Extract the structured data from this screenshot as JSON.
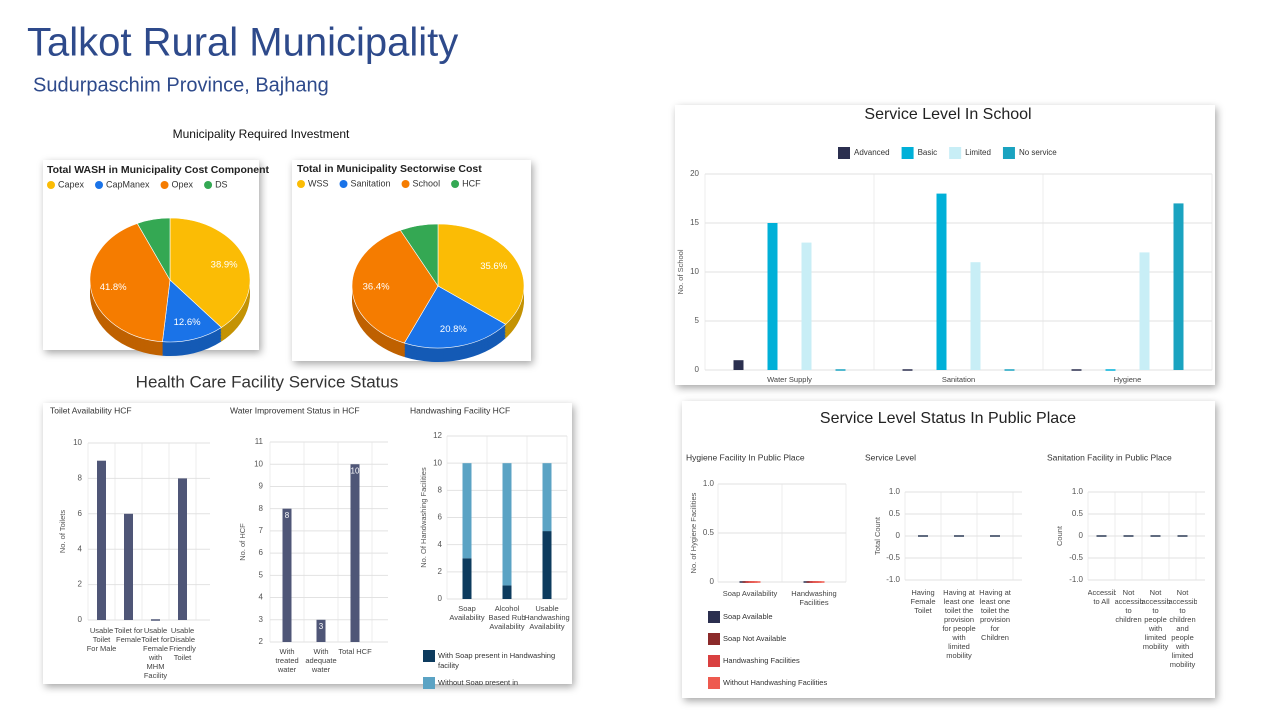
{
  "header": {
    "title": "Talkot Rural Municipality",
    "subtitle": "Sudurpaschim Province, Bajhang"
  },
  "sections": [
    "Municipality Required Investment",
    "Health Care Facility Service Status",
    "Service Level Status In Public Place"
  ],
  "chart_data": [
    {
      "type": "pie",
      "title": "Total WASH in Municipality Cost Component",
      "categories": [
        "Capex",
        "CapManex",
        "Opex",
        "DS"
      ],
      "values": [
        38.9,
        12.6,
        41.8,
        6.7
      ],
      "value_labels": [
        "38.9%",
        "12.6%",
        "41.8%",
        null
      ],
      "colors": [
        "#fbbc05",
        "#1a73e8",
        "#f57c00",
        "#34a853"
      ]
    },
    {
      "type": "pie",
      "title": "Total in Municipality Sectorwise Cost",
      "categories": [
        "WSS",
        "Sanitation",
        "School",
        "HCF"
      ],
      "values": [
        35.6,
        20.8,
        36.4,
        7.2
      ],
      "value_labels": [
        "35.6%",
        "20.8%",
        "36.4%",
        null
      ],
      "colors": [
        "#fbbc05",
        "#1a73e8",
        "#f57c00",
        "#34a853"
      ]
    },
    {
      "type": "bar",
      "title": "Service Level In School",
      "categories": [
        "Water Supply",
        "Sanitation",
        "Hygiene"
      ],
      "series": [
        {
          "name": "Advanced",
          "color": "#2b2f4f",
          "values": [
            1,
            0,
            0
          ]
        },
        {
          "name": "Basic",
          "color": "#00b0d8",
          "values": [
            15,
            18,
            0
          ]
        },
        {
          "name": "Limited",
          "color": "#c8eef6",
          "values": [
            13,
            11,
            12
          ]
        },
        {
          "name": "No service",
          "color": "#1aa3c0",
          "values": [
            0,
            0,
            17
          ]
        }
      ],
      "ylabel": "No. of School",
      "ylim": [
        0,
        20
      ],
      "yticks": [
        0,
        5,
        10,
        15,
        20
      ],
      "grid": true,
      "legend": "top"
    },
    {
      "type": "bar",
      "title": "Toilet Availability HCF",
      "categories": [
        "Usable Toilet For Male",
        "Toilet for Female",
        "Usable Toilet for Female with MHM Facility",
        "Usable Disable Friendly Toilet"
      ],
      "values": [
        9,
        6,
        0,
        8
      ],
      "color": "#4f5677",
      "ylabel": "No. of Toilets",
      "ylim": [
        0,
        10
      ],
      "yticks": [
        0,
        2,
        4,
        6,
        8,
        10
      ],
      "grid": true
    },
    {
      "type": "bar",
      "title": "Water Improvement Status in HCF",
      "categories": [
        "With treated water",
        "With adequate water",
        "Total HCF"
      ],
      "values": [
        8,
        3,
        10
      ],
      "color": "#4f5677",
      "data_labels": true,
      "ylabel": "No. of HCF",
      "ylim": [
        2,
        11
      ],
      "yticks": [
        2,
        3,
        4,
        5,
        6,
        7,
        8,
        9,
        10,
        11
      ],
      "grid": true
    },
    {
      "type": "bar",
      "title": "Handwashing Facility HCF",
      "stacked": true,
      "categories": [
        "Soap Availability",
        "Alcohol Based Rub Availability",
        "Usable Handwashing Availability"
      ],
      "series": [
        {
          "name": "With Soap present in Handwashing facility",
          "color": "#0d3b5e",
          "values": [
            3,
            1,
            5
          ]
        },
        {
          "name": "Without Soap present in",
          "color": "#5ba3c4",
          "values": [
            7,
            9,
            5
          ]
        }
      ],
      "ylabel": "No. Of Handwashing Facilities",
      "ylim": [
        0,
        12
      ],
      "yticks": [
        0,
        2,
        4,
        6,
        8,
        10,
        12
      ],
      "grid": true,
      "legend": "bottom"
    },
    {
      "type": "bar",
      "title": "Hygiene Facility In Public Place",
      "categories": [
        "Soap Availability",
        "Handwashing Facilities"
      ],
      "series": [
        {
          "name": "Soap Available",
          "color": "#2b2f4f",
          "values": [
            0,
            0
          ]
        },
        {
          "name": "Soap Not Available",
          "color": "#8b2a2a",
          "values": [
            0,
            0
          ]
        },
        {
          "name": "Handwashing Facilities",
          "color": "#d94040",
          "values": [
            0,
            0
          ]
        },
        {
          "name": "Without Handwashing Facilities",
          "color": "#ee5a4f",
          "values": [
            0,
            0
          ]
        }
      ],
      "ylabel": "No. of Hygiene Facilities",
      "ylim": [
        0,
        1
      ],
      "yticks": [
        0,
        0.5,
        {
          "value": 1,
          "label": "1.0"
        }
      ],
      "grid": true,
      "legend": "bottom"
    },
    {
      "type": "bar",
      "title": "Service Level",
      "categories": [
        "Having Female Toilet",
        "Having at least one toilet the provision for people with limited mobility",
        "Having at least one toilet the provision for Children"
      ],
      "values": [
        0,
        0,
        0
      ],
      "color": "#2b3a55",
      "ylabel": "Total Count",
      "ylim": [
        -1,
        1
      ],
      "yticks": [
        {
          "value": -1,
          "label": "-1.0"
        },
        -0.5,
        0,
        0.5,
        {
          "value": 1,
          "label": "1.0"
        }
      ],
      "grid": true
    },
    {
      "type": "bar",
      "title": "Sanitation Facility in Public Place",
      "categories": [
        "Accessible to All",
        "Not accessible to children",
        "Not accessible to people with limited mobility",
        "Not accessible to children and people with limited mobility"
      ],
      "values": [
        0,
        0,
        0,
        0
      ],
      "color": "#2b3a55",
      "ylabel": "Count",
      "ylim": [
        -1,
        1
      ],
      "yticks": [
        {
          "value": -1,
          "label": "-1.0"
        },
        -0.5,
        0,
        0.5,
        {
          "value": 1,
          "label": "1.0"
        }
      ],
      "grid": true
    }
  ]
}
